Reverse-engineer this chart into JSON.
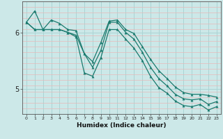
{
  "xlabel": "Humidex (Indice chaleur)",
  "bg_color": "#cce8e8",
  "grid_color_v": "#aad4d4",
  "grid_color_h": "#e8b8b8",
  "line_color": "#1a7a6e",
  "xmin": -0.5,
  "xmax": 23.5,
  "ymin": 4.55,
  "ymax": 6.55,
  "yticks": [
    5,
    6
  ],
  "xticks": [
    0,
    1,
    2,
    3,
    4,
    5,
    6,
    7,
    8,
    9,
    10,
    11,
    12,
    13,
    14,
    15,
    16,
    17,
    18,
    19,
    20,
    21,
    22,
    23
  ],
  "line1_x": [
    0,
    1,
    2,
    3,
    4,
    5,
    6,
    7,
    8,
    9,
    10,
    11,
    12,
    13,
    14,
    15,
    16,
    17,
    18,
    19,
    20,
    21,
    22,
    23
  ],
  "line1_y": [
    6.18,
    6.38,
    6.05,
    6.22,
    6.16,
    6.05,
    6.03,
    5.62,
    5.48,
    5.82,
    6.2,
    6.22,
    6.05,
    5.98,
    5.75,
    5.52,
    5.32,
    5.18,
    5.03,
    4.93,
    4.9,
    4.9,
    4.88,
    4.85
  ],
  "line2_x": [
    0,
    1,
    2,
    3,
    4,
    5,
    6,
    7,
    8,
    9,
    10,
    11,
    12,
    13,
    14,
    15,
    16,
    17,
    18,
    19,
    20,
    21,
    22,
    23
  ],
  "line2_y": [
    6.18,
    6.05,
    6.05,
    6.05,
    6.05,
    6.0,
    5.95,
    5.62,
    5.38,
    5.68,
    6.18,
    6.18,
    6.0,
    5.88,
    5.65,
    5.38,
    5.18,
    5.05,
    4.9,
    4.82,
    4.8,
    4.82,
    4.72,
    4.77
  ],
  "line3_x": [
    0,
    1,
    2,
    3,
    4,
    5,
    6,
    7,
    8,
    9,
    10,
    11,
    12,
    13,
    14,
    15,
    16,
    17,
    18,
    19,
    20,
    21,
    22,
    23
  ],
  "line3_y": [
    6.18,
    6.05,
    6.05,
    6.05,
    6.05,
    6.0,
    5.92,
    5.28,
    5.22,
    5.55,
    6.05,
    6.05,
    5.88,
    5.72,
    5.5,
    5.22,
    5.02,
    4.92,
    4.78,
    4.7,
    4.68,
    4.72,
    4.62,
    4.68
  ]
}
